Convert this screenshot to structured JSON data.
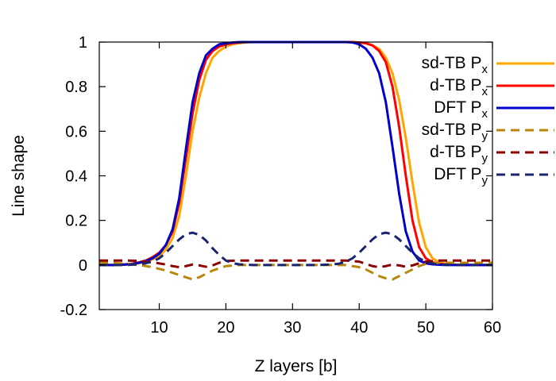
{
  "chart_data": {
    "type": "line",
    "title": "",
    "xlabel": "Z layers [b]",
    "ylabel": "Line shape",
    "xlim": [
      1,
      60
    ],
    "ylim": [
      -0.2,
      1
    ],
    "xticks": [
      10,
      20,
      30,
      40,
      50,
      60
    ],
    "yticks": [
      -0.2,
      0,
      0.2,
      0.4,
      0.6,
      0.8,
      1
    ],
    "ytick_labels": [
      "-0.2",
      "0",
      "0.2",
      "0.4",
      "0.6",
      "0.8",
      "1"
    ],
    "legend_position": "top-right",
    "grid": false,
    "series": [
      {
        "name": "sd-TB P",
        "subscript": "x",
        "color": "#FFA500",
        "dash": "solid",
        "x": [
          1,
          2,
          3,
          4,
          5,
          6,
          7,
          8,
          9,
          10,
          11,
          12,
          13,
          14,
          15,
          16,
          17,
          18,
          19,
          20,
          21,
          22,
          23,
          24,
          25,
          26,
          27,
          28,
          29,
          30,
          31,
          32,
          33,
          34,
          35,
          36,
          37,
          38,
          39,
          40,
          41,
          42,
          43,
          44,
          45,
          46,
          47,
          48,
          49,
          50,
          51,
          52,
          53,
          54,
          55,
          56,
          57,
          58,
          59,
          60
        ],
        "y": [
          0,
          0,
          0,
          0,
          0.002,
          0.004,
          0.008,
          0.015,
          0.025,
          0.04,
          0.07,
          0.12,
          0.22,
          0.4,
          0.6,
          0.75,
          0.86,
          0.93,
          0.96,
          0.98,
          0.99,
          0.995,
          0.998,
          1,
          1,
          1,
          1,
          1,
          1,
          1,
          1,
          1,
          1,
          1,
          1,
          1,
          1,
          1,
          1,
          0.998,
          0.995,
          0.985,
          0.97,
          0.93,
          0.86,
          0.74,
          0.57,
          0.37,
          0.19,
          0.08,
          0.03,
          0.012,
          0.005,
          0.002,
          0.001,
          0,
          0,
          0,
          0,
          0
        ]
      },
      {
        "name": "d-TB P",
        "subscript": "x",
        "color": "#FF0000",
        "dash": "solid",
        "x": [
          1,
          2,
          3,
          4,
          5,
          6,
          7,
          8,
          9,
          10,
          11,
          12,
          13,
          14,
          15,
          16,
          17,
          18,
          19,
          20,
          21,
          22,
          23,
          24,
          25,
          26,
          27,
          28,
          29,
          30,
          31,
          32,
          33,
          34,
          35,
          36,
          37,
          38,
          39,
          40,
          41,
          42,
          43,
          44,
          45,
          46,
          47,
          48,
          49,
          50,
          51,
          52,
          53,
          54,
          55,
          56,
          57,
          58,
          59,
          60
        ],
        "y": [
          0,
          0,
          0,
          0.001,
          0.003,
          0.006,
          0.012,
          0.02,
          0.035,
          0.055,
          0.09,
          0.15,
          0.28,
          0.48,
          0.68,
          0.83,
          0.92,
          0.96,
          0.98,
          0.99,
          0.995,
          0.998,
          1,
          1,
          1,
          1,
          1,
          1,
          1,
          1,
          1,
          1,
          1,
          1,
          1,
          1,
          1,
          1,
          1,
          0.998,
          0.995,
          0.985,
          0.96,
          0.91,
          0.8,
          0.62,
          0.4,
          0.2,
          0.08,
          0.03,
          0.012,
          0.005,
          0.002,
          0.001,
          0,
          0,
          0,
          0,
          0,
          0
        ]
      },
      {
        "name": "DFT P",
        "subscript": "x",
        "color": "#0000CC",
        "dash": "solid",
        "x": [
          1,
          2,
          3,
          4,
          5,
          6,
          7,
          8,
          9,
          10,
          11,
          12,
          13,
          14,
          15,
          16,
          17,
          18,
          19,
          20,
          21,
          22,
          23,
          24,
          25,
          26,
          27,
          28,
          29,
          30,
          31,
          32,
          33,
          34,
          35,
          36,
          37,
          38,
          39,
          40,
          41,
          42,
          43,
          44,
          45,
          46,
          47,
          48,
          49,
          50,
          51,
          52,
          53,
          54,
          55,
          56,
          57,
          58,
          59,
          60
        ],
        "y": [
          0,
          0,
          0,
          0.001,
          0.002,
          0.005,
          0.01,
          0.018,
          0.03,
          0.05,
          0.09,
          0.16,
          0.3,
          0.52,
          0.73,
          0.86,
          0.94,
          0.97,
          0.99,
          0.995,
          0.998,
          1,
          1,
          1,
          1,
          1,
          1,
          1,
          1,
          1,
          1,
          1,
          1,
          1,
          1,
          1,
          1,
          1,
          0.998,
          0.99,
          0.97,
          0.93,
          0.86,
          0.73,
          0.53,
          0.32,
          0.15,
          0.06,
          0.02,
          0.008,
          0.003,
          0.001,
          0,
          0,
          0,
          0,
          0,
          0,
          0,
          0
        ]
      },
      {
        "name": "sd-TB P",
        "subscript": "y",
        "color": "#B8860B",
        "dash": "dashed",
        "x": [
          1,
          3,
          5,
          7,
          9,
          11,
          13,
          14,
          15,
          16,
          17,
          18,
          19,
          20,
          22,
          24,
          26,
          28,
          30,
          32,
          34,
          36,
          38,
          40,
          41,
          42,
          43,
          44,
          45,
          46,
          47,
          48,
          49,
          50,
          52,
          54,
          56,
          58,
          60
        ],
        "y": [
          0.01,
          0.01,
          0.005,
          0,
          -0.01,
          -0.025,
          -0.045,
          -0.055,
          -0.065,
          -0.055,
          -0.04,
          -0.025,
          -0.015,
          -0.005,
          0,
          0,
          0,
          0,
          0,
          0,
          0,
          0,
          0,
          -0.01,
          -0.02,
          -0.035,
          -0.05,
          -0.06,
          -0.065,
          -0.05,
          -0.035,
          -0.02,
          -0.005,
          0.005,
          0.01,
          0.01,
          0.01,
          0.01,
          0.01
        ]
      },
      {
        "name": "d-TB P",
        "subscript": "y",
        "color": "#8B0000",
        "dash": "dashed",
        "x": [
          1,
          3,
          5,
          7,
          9,
          11,
          12,
          13,
          14,
          15,
          16,
          17,
          18,
          19,
          20,
          22,
          24,
          26,
          28,
          30,
          32,
          34,
          36,
          38,
          40,
          41,
          42,
          43,
          44,
          45,
          46,
          47,
          48,
          49,
          50,
          52,
          54,
          56,
          58,
          60
        ],
        "y": [
          0.02,
          0.02,
          0.02,
          0.018,
          0.012,
          0.002,
          -0.005,
          -0.01,
          -0.005,
          0.002,
          -0.002,
          -0.008,
          -0.002,
          0.01,
          0.018,
          0.02,
          0.02,
          0.02,
          0.02,
          0.02,
          0.02,
          0.02,
          0.02,
          0.02,
          0.015,
          0.005,
          -0.005,
          -0.01,
          -0.005,
          0.002,
          -0.002,
          -0.008,
          -0.002,
          0.008,
          0.015,
          0.02,
          0.02,
          0.02,
          0.02,
          0.02
        ]
      },
      {
        "name": "DFT P",
        "subscript": "y",
        "color": "#1A2470",
        "dash": "dashed",
        "x": [
          1,
          3,
          5,
          7,
          8,
          9,
          10,
          11,
          12,
          13,
          14,
          15,
          16,
          17,
          18,
          19,
          20,
          21,
          22,
          24,
          26,
          28,
          30,
          32,
          34,
          36,
          37,
          38,
          39,
          40,
          41,
          42,
          43,
          44,
          45,
          46,
          47,
          48,
          49,
          50,
          51,
          52,
          54,
          56,
          58,
          60
        ],
        "y": [
          0,
          0,
          0,
          0.003,
          0.008,
          0.015,
          0.03,
          0.055,
          0.085,
          0.115,
          0.138,
          0.145,
          0.135,
          0.11,
          0.075,
          0.045,
          0.02,
          0.008,
          0.003,
          0,
          0,
          0,
          0,
          0,
          0,
          0.002,
          0.006,
          0.015,
          0.03,
          0.055,
          0.085,
          0.115,
          0.138,
          0.145,
          0.138,
          0.115,
          0.085,
          0.055,
          0.03,
          0.015,
          0.006,
          0.002,
          0,
          0,
          0,
          0
        ]
      }
    ]
  }
}
